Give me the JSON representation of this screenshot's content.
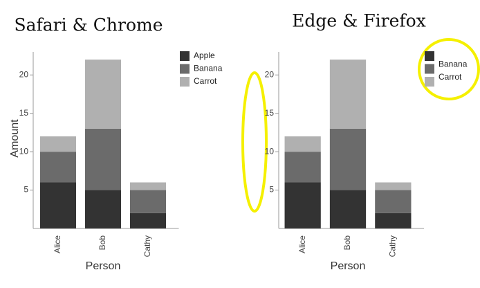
{
  "chart_data": [
    {
      "type": "stacked-bar",
      "title": "Safari & Chrome",
      "x_label": "Person",
      "y_label": "Amount",
      "categories": [
        "Alice",
        "Bob",
        "Cathy"
      ],
      "series": [
        {
          "name": "Apple",
          "color": "#333333",
          "values": [
            6,
            5,
            2
          ]
        },
        {
          "name": "Banana",
          "color": "#6b6b6b",
          "values": [
            4,
            8,
            3
          ]
        },
        {
          "name": "Carrot",
          "color": "#b0b0b0",
          "values": [
            2,
            9,
            1
          ]
        }
      ],
      "ylim": [
        0,
        23
      ],
      "yticks": [
        5,
        10,
        15,
        20
      ],
      "legend": "top-right"
    },
    {
      "type": "stacked-bar",
      "title": "Edge & Firefox",
      "x_label": "Person",
      "categories": [
        "Alice",
        "Bob",
        "Cathy"
      ],
      "series": [
        {
          "name": null,
          "color": "#333333",
          "values": [
            6,
            5,
            2
          ]
        },
        {
          "name": "Banana",
          "color": "#6b6b6b",
          "values": [
            4,
            8,
            3
          ]
        },
        {
          "name": "Carrot",
          "color": "#b0b0b0",
          "values": [
            2,
            9,
            1
          ]
        }
      ],
      "ylim": [
        0,
        23
      ],
      "yticks": [
        5,
        10,
        15,
        20
      ],
      "legend": "top-right"
    }
  ]
}
